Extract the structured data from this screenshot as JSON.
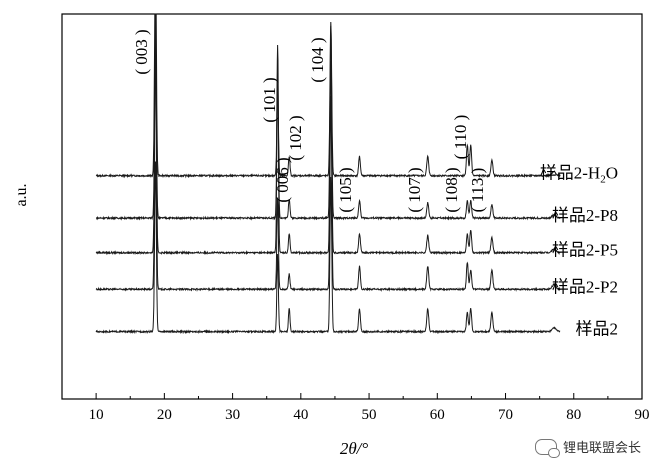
{
  "chart_data": {
    "type": "line",
    "xlabel": "2θ/°",
    "ylabel": "a.u.",
    "xlim": [
      5,
      90
    ],
    "xticks": [
      10,
      20,
      30,
      40,
      50,
      60,
      70,
      80,
      90
    ],
    "grid": false,
    "series": [
      {
        "name": "样品2-H2O",
        "label_html": "样品2-H<sub>2</sub>O",
        "baseline": 0.58
      },
      {
        "name": "样品2-P8",
        "label_html": "样品2-P8",
        "baseline": 0.47
      },
      {
        "name": "样品2-P5",
        "label_html": "样品2-P5",
        "baseline": 0.38
      },
      {
        "name": "样品2-P2",
        "label_html": "样品2-P2",
        "baseline": 0.285
      },
      {
        "name": "样品2",
        "label_html": "样品2",
        "baseline": 0.175
      }
    ],
    "peaks": [
      {
        "hkl": "( 003 )",
        "x": 18.7,
        "top": 1.0
      },
      {
        "hkl": "( 101 )",
        "x": 36.6,
        "top": 0.92
      },
      {
        "hkl": "( 006 )",
        "x": 38.2,
        "top": 0.84
      },
      {
        "hkl": "( 102 )",
        "x": 38.5,
        "top": 0.88
      },
      {
        "hkl": "( 104 )",
        "x": 44.4,
        "top": 0.96
      },
      {
        "hkl": "( 105 )",
        "x": 48.6,
        "top": 0.8
      },
      {
        "hkl": "( 107 )",
        "x": 58.6,
        "top": 0.8
      },
      {
        "hkl": "( 108 )",
        "x": 64.4,
        "top": 0.8
      },
      {
        "hkl": "( 110 )",
        "x": 64.9,
        "top": 0.88
      },
      {
        "hkl": "( 113 )",
        "x": 68.0,
        "top": 0.78
      }
    ]
  },
  "watermark": {
    "text": "锂电联盟会长",
    "icon": "wechat-icon"
  },
  "colors": {
    "line": "#1a1a1a",
    "axis": "#000000"
  }
}
